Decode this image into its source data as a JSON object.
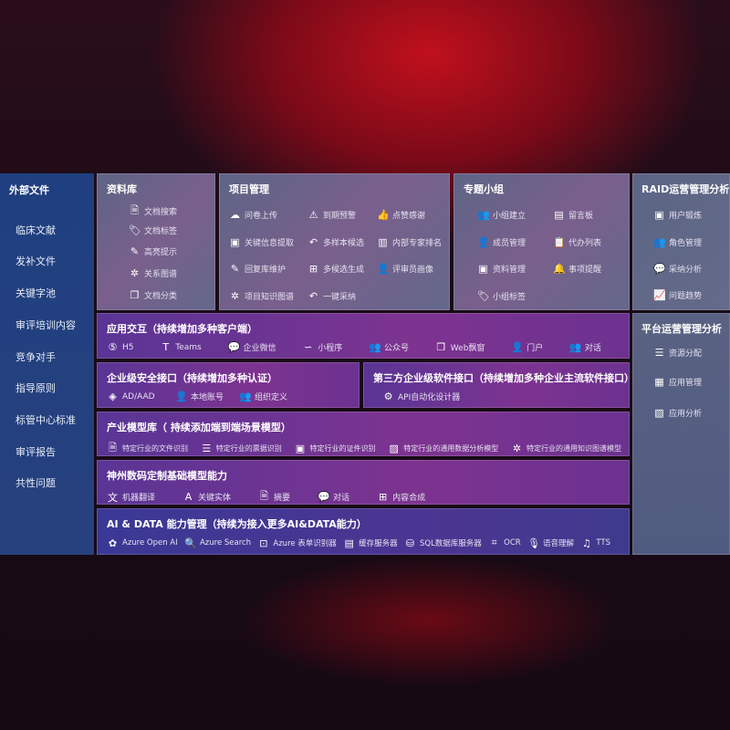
{
  "sidebar": {
    "title": "外部文件",
    "items": [
      "临床文献",
      "发补文件",
      "关键字池",
      "审评培训内容",
      "竞争对手",
      "指导原则",
      "标管中心标准",
      "审评报告",
      "共性问题"
    ]
  },
  "library": {
    "title": "资料库",
    "items": [
      {
        "icon": "doc-search-icon",
        "label": "文档搜索"
      },
      {
        "icon": "tag-icon",
        "label": "文档标签"
      },
      {
        "icon": "pen-icon",
        "label": "高亮提示"
      },
      {
        "icon": "graph-icon",
        "label": "关系图谱"
      },
      {
        "icon": "doc-copy-icon",
        "label": "文档分类"
      }
    ]
  },
  "project": {
    "title": "项目管理",
    "items": [
      {
        "icon": "cloud-upload-icon",
        "label": "问卷上传"
      },
      {
        "icon": "alarm-icon",
        "label": "到期预警"
      },
      {
        "icon": "thumbs-up-icon",
        "label": "点赞感谢"
      },
      {
        "icon": "window-icon",
        "label": "关键信息提取"
      },
      {
        "icon": "reply-icon",
        "label": "多样本候选"
      },
      {
        "icon": "ranking-icon",
        "label": "内部专家排名"
      },
      {
        "icon": "edit-icon",
        "label": "回复库维护"
      },
      {
        "icon": "puzzle-icon",
        "label": "多候选生成"
      },
      {
        "icon": "user-icon",
        "label": "评审员画像"
      },
      {
        "icon": "graph-icon",
        "label": "项目知识图谱"
      },
      {
        "icon": "reply-icon",
        "label": "一键采纳"
      }
    ]
  },
  "group": {
    "title": "专题小组",
    "items": [
      {
        "icon": "users-icon",
        "label": "小组建立"
      },
      {
        "icon": "bbs-icon",
        "label": "留言板"
      },
      {
        "icon": "user-add-icon",
        "label": "成员管理"
      },
      {
        "icon": "clipboard-icon",
        "label": "代办列表"
      },
      {
        "icon": "folder-icon",
        "label": "资料管理"
      },
      {
        "icon": "bell-icon",
        "label": "事项提醒"
      },
      {
        "icon": "tag-icon",
        "label": "小组标签"
      }
    ]
  },
  "raid": {
    "title": "RAID运营管理分析",
    "items": [
      {
        "icon": "id-card-icon",
        "label": "用户锻炼"
      },
      {
        "icon": "users-icon",
        "label": "角色管理"
      },
      {
        "icon": "qa-icon",
        "label": "采纳分析"
      },
      {
        "icon": "trend-icon",
        "label": "问题趋势"
      }
    ]
  },
  "platform": {
    "title": "平台运营管理分析",
    "items": [
      {
        "icon": "list-icon",
        "label": "资源分配"
      },
      {
        "icon": "apps-icon",
        "label": "应用管理"
      },
      {
        "icon": "chart-icon",
        "label": "应用分析"
      }
    ]
  },
  "interaction": {
    "title": "应用交互（持续增加多种客户端）",
    "items": [
      {
        "icon": "html5-icon",
        "label": "H5"
      },
      {
        "icon": "teams-icon",
        "label": "Teams"
      },
      {
        "icon": "wechat-icon",
        "label": "企业微信"
      },
      {
        "icon": "miniprogram-icon",
        "label": "小程序"
      },
      {
        "icon": "users-icon",
        "label": "公众号"
      },
      {
        "icon": "window-icon",
        "label": "Web飘窗"
      },
      {
        "icon": "portal-icon",
        "label": "门户"
      },
      {
        "icon": "chat-users-icon",
        "label": "对话"
      }
    ]
  },
  "security": {
    "title": "企业级安全接口（持续增加多种认证）",
    "items": [
      {
        "icon": "ad-icon",
        "label": "AD/AAD"
      },
      {
        "icon": "user-lock-icon",
        "label": "本地账号"
      },
      {
        "icon": "org-icon",
        "label": "组织定义"
      }
    ]
  },
  "thirdparty": {
    "title": "第三方企业级软件接口（持续增加多种企业主流软件接口）",
    "items": [
      {
        "icon": "gear-icon",
        "label": "API自动化设计器"
      }
    ]
  },
  "industry": {
    "title": "产业模型库（ 持续添加端到端场景模型）",
    "items": [
      {
        "icon": "file-icon",
        "label": "特定行业的文件识别"
      },
      {
        "icon": "receipt-icon",
        "label": "特定行业的票据识别"
      },
      {
        "icon": "id-card-icon",
        "label": "特定行业的证件识别"
      },
      {
        "icon": "image-icon",
        "label": "特定行业的通用数据分析模型"
      },
      {
        "icon": "graph-icon",
        "label": "特定行业的通用知识图谱模型"
      }
    ]
  },
  "base": {
    "title": "神州数码定制基础模型能力",
    "items": [
      {
        "icon": "translate-icon",
        "label": "机器翻译"
      },
      {
        "icon": "entity-icon",
        "label": "关键实体"
      },
      {
        "icon": "doc-icon",
        "label": "摘要"
      },
      {
        "icon": "chat-icon",
        "label": "对话"
      },
      {
        "icon": "puzzle-icon",
        "label": "内容合成"
      }
    ]
  },
  "ai": {
    "title": "AI & DATA 能力管理（持续为接入更多AI&DATA能力）",
    "items": [
      {
        "icon": "openai-icon",
        "label": "Azure Open AI"
      },
      {
        "icon": "search-icon",
        "label": "Azure Search"
      },
      {
        "icon": "form-icon",
        "label": "Azure 表单识别器"
      },
      {
        "icon": "cache-icon",
        "label": "缓存服务器"
      },
      {
        "icon": "database-icon",
        "label": "SQL数据库服务器"
      },
      {
        "icon": "ocr-icon",
        "label": "OCR"
      },
      {
        "icon": "mic-icon",
        "label": "语音理解"
      },
      {
        "icon": "tts-icon",
        "label": "TTS"
      }
    ]
  }
}
